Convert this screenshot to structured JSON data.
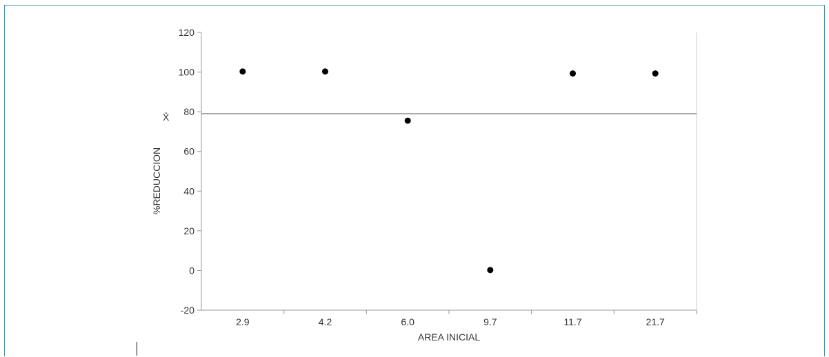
{
  "chart_data": {
    "type": "scatter",
    "categories": [
      "2.9",
      "4.2",
      "6.0",
      "9.7",
      "11.7",
      "21.7"
    ],
    "values": [
      100.3,
      100.3,
      75.5,
      0.2,
      99.3,
      99.3
    ],
    "xlabel": "AREA INICIAL",
    "ylabel": "%REDUCCION",
    "ylim": [
      -20,
      120
    ],
    "yticks": [
      -20,
      0,
      20,
      40,
      60,
      80,
      100,
      120
    ],
    "reference_line": {
      "label": "X̄",
      "value": 79
    },
    "grid": false,
    "colors": {
      "point": "#000000",
      "axis": "#999999",
      "reference": "#555555"
    }
  }
}
